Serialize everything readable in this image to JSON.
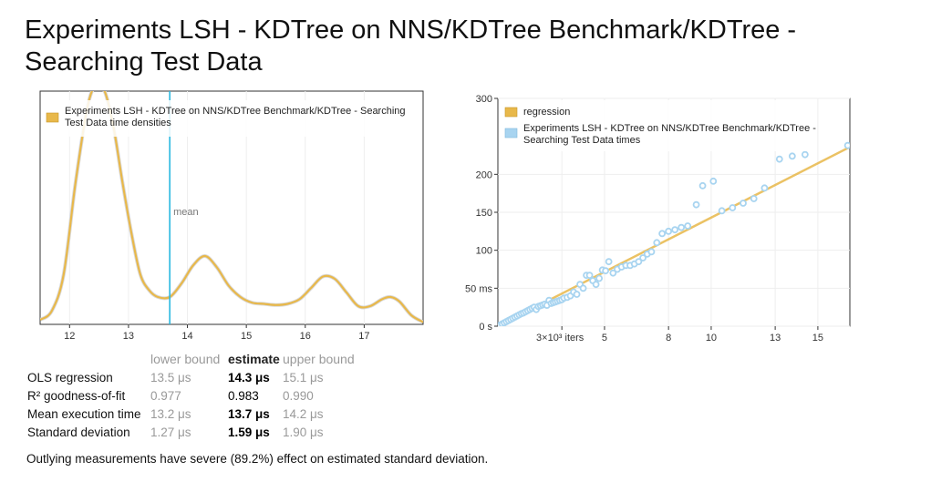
{
  "title": "Experiments LSH - KDTree on NNS/KDTree Benchmark/KDTree - Searching Test Data",
  "colors": {
    "density": "#e8b84a",
    "mean": "#29b8e0",
    "regression": "#e8b84a",
    "points": "#a8d4f0"
  },
  "chart_data": [
    {
      "type": "area",
      "legend": [
        "Experiments LSH - KDTree on NNS/KDTree Benchmark/KDTree - Searching Test Data time densities"
      ],
      "legend_position": "top-left",
      "x_ticks": [
        "12",
        "13",
        "14",
        "15",
        "16",
        "17"
      ],
      "xlim": [
        11.5,
        18.0
      ],
      "ylim": [
        0,
        1
      ],
      "mean": 13.7,
      "mean_label": "mean",
      "x": [
        11.5,
        11.7,
        11.9,
        12.1,
        12.3,
        12.45,
        12.6,
        12.75,
        12.9,
        13.05,
        13.2,
        13.35,
        13.5,
        13.7,
        13.9,
        14.1,
        14.3,
        14.5,
        14.7,
        14.9,
        15.1,
        15.3,
        15.5,
        15.7,
        15.9,
        16.1,
        16.3,
        16.5,
        16.7,
        16.9,
        17.1,
        17.3,
        17.45,
        17.6,
        17.8,
        18.0
      ],
      "y": [
        0.02,
        0.06,
        0.22,
        0.62,
        0.95,
        1.05,
        1.02,
        0.86,
        0.62,
        0.4,
        0.22,
        0.15,
        0.12,
        0.12,
        0.18,
        0.26,
        0.3,
        0.25,
        0.17,
        0.12,
        0.095,
        0.09,
        0.085,
        0.09,
        0.11,
        0.16,
        0.21,
        0.2,
        0.14,
        0.08,
        0.08,
        0.11,
        0.12,
        0.1,
        0.04,
        0.01
      ]
    },
    {
      "type": "scatter",
      "legend": [
        "regression",
        "Experiments LSH - KDTree on NNS/KDTree Benchmark/KDTree - Searching Test Data times"
      ],
      "legend_position": "top-left",
      "y_ticks": [
        "0 s",
        "50 ms",
        "100",
        "150",
        "200",
        "300"
      ],
      "x_ticks": [
        "3×10³ iters",
        "5",
        "8",
        "10",
        "13",
        "15"
      ],
      "xlim": [
        0,
        16.5
      ],
      "ylim": [
        0,
        300
      ],
      "regression": {
        "x": [
          0,
          16.5
        ],
        "y": [
          0,
          236
        ]
      },
      "points": {
        "x": [
          0.1,
          0.2,
          0.3,
          0.4,
          0.5,
          0.6,
          0.7,
          0.8,
          0.9,
          1.0,
          1.1,
          1.2,
          1.3,
          1.4,
          1.5,
          1.6,
          1.7,
          1.8,
          1.9,
          2.0,
          2.1,
          2.2,
          2.3,
          2.4,
          2.5,
          2.6,
          2.7,
          2.8,
          2.9,
          3.0,
          3.1,
          3.25,
          3.4,
          3.55,
          3.7,
          3.85,
          4.0,
          4.15,
          4.3,
          4.45,
          4.6,
          4.75,
          4.9,
          5.05,
          5.2,
          5.4,
          5.6,
          5.8,
          6.0,
          6.2,
          6.4,
          6.6,
          6.8,
          7.0,
          7.2,
          7.45,
          7.7,
          8.0,
          8.3,
          8.6,
          8.9,
          9.3,
          9.6,
          10.1,
          10.5,
          11.0,
          11.5,
          12.0,
          12.5,
          13.2,
          13.8,
          14.4,
          16.4
        ],
        "y": [
          1.5,
          3,
          4.5,
          6,
          7.5,
          9,
          10.5,
          12,
          13.5,
          15,
          16.5,
          17.5,
          19,
          20.5,
          22,
          23.5,
          25,
          22,
          26,
          27,
          28,
          29,
          27.5,
          34,
          30,
          31,
          32,
          33,
          34,
          35,
          37,
          38,
          40,
          45,
          42,
          55,
          50,
          67,
          67,
          60,
          55,
          63,
          74,
          73,
          85,
          70,
          75,
          78,
          80,
          80,
          82,
          85,
          90,
          95,
          98,
          110,
          122,
          125,
          127,
          130,
          132,
          160,
          185,
          191,
          152,
          156,
          162,
          168,
          182,
          220,
          224,
          226,
          238
        ]
      }
    }
  ],
  "stats": {
    "headers": {
      "lower": "lower bound",
      "estimate": "estimate",
      "upper": "upper bound"
    },
    "rows": [
      {
        "label": "OLS regression",
        "lower": "13.5 μs",
        "estimate": "14.3 μs",
        "upper": "15.1 μs"
      },
      {
        "label": "R² goodness-of-fit",
        "lower": "0.977",
        "estimate": "0.983",
        "upper": "0.990"
      },
      {
        "label": "Mean execution time",
        "lower": "13.2 μs",
        "estimate": "13.7 μs",
        "upper": "14.2 μs"
      },
      {
        "label": "Standard deviation",
        "lower": "1.27 μs",
        "estimate": "1.59 μs",
        "upper": "1.90 μs"
      }
    ]
  },
  "note": "Outlying measurements have severe (89.2%) effect on estimated standard deviation."
}
